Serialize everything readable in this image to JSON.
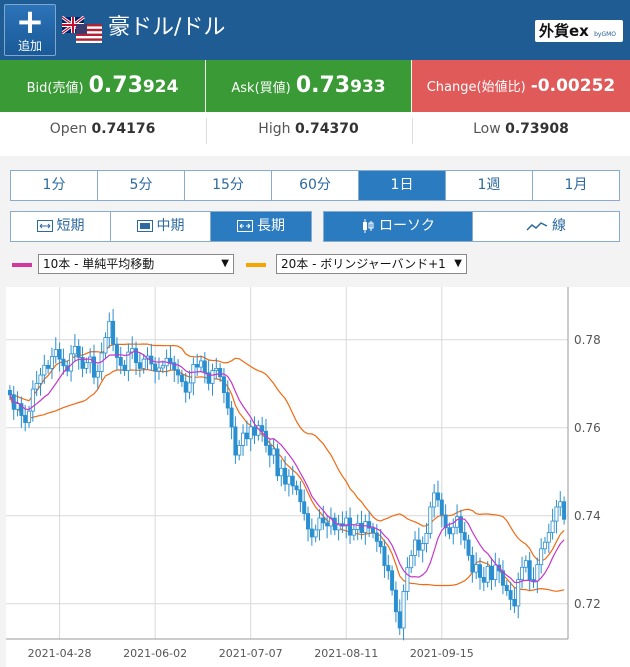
{
  "header": {
    "add_label": "追加",
    "add_plus": "+",
    "title": "豪ドル/ドル",
    "logo_text": "外貨ex",
    "logo_sub": "byGMO"
  },
  "quotes": {
    "bid_label": "Bid(売値)",
    "bid_big": "0.73",
    "bid_small": "924",
    "ask_label": "Ask(買値)",
    "ask_big": "0.73",
    "ask_small": "933",
    "change_label": "Change(始値比)",
    "change_value": "-0.00252"
  },
  "ohlc": {
    "open_label": "Open",
    "open_value": "0.74176",
    "high_label": "High",
    "high_value": "0.74370",
    "low_label": "Low",
    "low_value": "0.73908"
  },
  "timeframes": [
    "1分",
    "5分",
    "15分",
    "60分",
    "1日",
    "1週",
    "1月"
  ],
  "timeframe_active": 4,
  "ranges": [
    "短期",
    "中期",
    "長期"
  ],
  "range_active": 2,
  "chart_types": [
    "ローソク",
    "線"
  ],
  "chart_type_active": 0,
  "indicators": {
    "ma_label": "10本 - 単純平均移動",
    "ma_color": "#d6379f",
    "bb_label": "20本 - ボリンジャーバンド+1",
    "bb_color": "#f7a400"
  },
  "colors": {
    "header": "#1f5c94",
    "bid_ask_bg": "#3a9a36",
    "change_bg": "#e05a5a",
    "candle": "#2a8fd0",
    "band_line": "#f06a14",
    "ma_line": "#c437c9"
  },
  "chart_data": {
    "type": "candlestick",
    "title": "",
    "xlabel": "",
    "ylabel": "",
    "ylim": [
      0.712,
      0.792
    ],
    "yticks": [
      0.72,
      0.74,
      0.76,
      0.78
    ],
    "ytick_labels": [
      "0.72",
      "0.74",
      "0.76",
      "0.78"
    ],
    "xtick_labels": [
      "2021-04-28",
      "2021-06-02",
      "2021-07-07",
      "2021-08-11",
      "2021-09-15"
    ],
    "xtick_index": [
      13,
      38,
      63,
      88,
      113
    ],
    "grid": true,
    "close": [
      0.7675,
      0.7642,
      0.7655,
      0.7628,
      0.7612,
      0.7638,
      0.7688,
      0.7701,
      0.772,
      0.7742,
      0.7735,
      0.7762,
      0.7778,
      0.7756,
      0.7741,
      0.7729,
      0.7768,
      0.7785,
      0.776,
      0.7735,
      0.7748,
      0.7761,
      0.7715,
      0.7728,
      0.777,
      0.7805,
      0.7842,
      0.779,
      0.776,
      0.7742,
      0.773,
      0.7772,
      0.778,
      0.7748,
      0.7735,
      0.7756,
      0.7763,
      0.7745,
      0.7729,
      0.7736,
      0.7741,
      0.7758,
      0.7748,
      0.7732,
      0.772,
      0.7705,
      0.7681,
      0.7702,
      0.7744,
      0.7738,
      0.7752,
      0.7725,
      0.7701,
      0.773,
      0.7735,
      0.7716,
      0.768,
      0.7645,
      0.7602,
      0.7538,
      0.756,
      0.7588,
      0.7575,
      0.7602,
      0.7583,
      0.7605,
      0.7592,
      0.756,
      0.7538,
      0.7552,
      0.7491,
      0.7508,
      0.7472,
      0.749,
      0.7468,
      0.7459,
      0.7432,
      0.7405,
      0.737,
      0.7352,
      0.7368,
      0.7395,
      0.7384,
      0.7377,
      0.7395,
      0.7368,
      0.7382,
      0.7377,
      0.7395,
      0.7356,
      0.7369,
      0.7383,
      0.7362,
      0.7387,
      0.7372,
      0.7361,
      0.7342,
      0.733,
      0.7287,
      0.7275,
      0.7231,
      0.7182,
      0.7145,
      0.7228,
      0.7282,
      0.731,
      0.7345,
      0.7322,
      0.7337,
      0.736,
      0.742,
      0.7452,
      0.7436,
      0.7402,
      0.7373,
      0.7359,
      0.7374,
      0.7398,
      0.7362,
      0.7345,
      0.731,
      0.7272,
      0.7289,
      0.726,
      0.7249,
      0.7285,
      0.7255,
      0.7288,
      0.7275,
      0.7242,
      0.723,
      0.721,
      0.7195,
      0.7255,
      0.7283,
      0.7298,
      0.7255,
      0.7252,
      0.7289,
      0.7325,
      0.734,
      0.7362,
      0.7388,
      0.742,
      0.7432,
      0.7392
    ]
  }
}
